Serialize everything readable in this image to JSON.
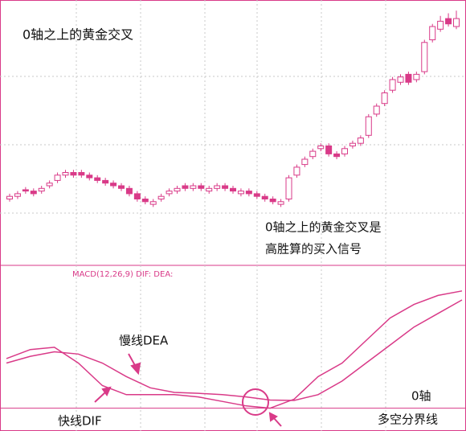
{
  "chart_data": [
    {
      "type": "candlestick",
      "title": "0轴之上的黄金交叉",
      "annotations": [
        "0轴之上的黄金交叉是",
        "高胜算的买入信号"
      ],
      "color": "#d93a88",
      "grid": true,
      "ylim": [
        0,
        100
      ],
      "open": [
        25,
        26,
        28.5,
        28,
        28,
        30,
        32,
        34,
        35,
        35,
        34,
        33,
        32,
        31,
        30,
        29,
        27,
        25,
        23,
        25,
        27,
        28,
        30,
        29,
        30,
        28,
        29,
        30,
        29,
        27,
        28,
        27,
        26,
        25,
        23,
        25,
        34,
        38,
        41,
        44,
        45,
        42,
        42,
        45,
        46,
        49,
        57,
        61,
        66,
        69,
        72,
        70,
        73,
        85,
        89,
        93,
        90
      ],
      "high": [
        27,
        28,
        29.5,
        29,
        30,
        32,
        35,
        36,
        36,
        36,
        35,
        34,
        33,
        32,
        31,
        30,
        28,
        26,
        25,
        27,
        29,
        30,
        31,
        31,
        31,
        30,
        31,
        31,
        30,
        29,
        29,
        28,
        27,
        26,
        25,
        34,
        38,
        41,
        44,
        46,
        46,
        43,
        45,
        47,
        49,
        57,
        61,
        66,
        71,
        72,
        73,
        73,
        85,
        91,
        94,
        95,
        96
      ],
      "low": [
        24,
        25,
        27,
        26,
        27,
        29,
        31,
        33,
        33,
        33,
        32,
        31,
        30,
        29,
        28,
        26,
        24,
        23,
        22,
        24,
        26,
        27,
        28,
        28,
        28,
        27,
        28,
        28,
        27,
        26,
        26,
        25,
        24,
        23,
        22,
        24,
        33,
        37,
        40,
        43,
        41,
        40,
        41,
        44,
        45,
        48,
        56,
        60,
        65,
        68,
        68,
        69,
        72,
        84,
        88,
        90,
        89
      ],
      "close": [
        26,
        27,
        28,
        27,
        29,
        31,
        34,
        35,
        34,
        34,
        33,
        32,
        31,
        30,
        29,
        27,
        25,
        24,
        24,
        26,
        28,
        29,
        29,
        30,
        29,
        29,
        30,
        29,
        28,
        28,
        27,
        26,
        25,
        24,
        24,
        33,
        37,
        40,
        43,
        45,
        42,
        41,
        44,
        46,
        48,
        56,
        60,
        65,
        70,
        71,
        69,
        72,
        84,
        90,
        92,
        91,
        93
      ]
    },
    {
      "type": "line",
      "title": "MACD(12,26,9) DIF: DEA:",
      "ylim": [
        -0.4,
        2.9
      ],
      "zero_line": 0,
      "annotations": [
        "0轴",
        "多空分界线"
      ],
      "series": [
        {
          "name": "快线DIF",
          "color": "#d93a88",
          "values": [
            1.1,
            1.3,
            1.35,
            1.0,
            0.5,
            0.3,
            0.3,
            0.3,
            0.25,
            0.15,
            0.05,
            0.0,
            0.2,
            0.7,
            1.0,
            1.5,
            2.0,
            2.3,
            2.5,
            2.6
          ]
        },
        {
          "name": "慢线DEA",
          "color": "#d93a88",
          "values": [
            1.0,
            1.15,
            1.25,
            1.2,
            1.0,
            0.7,
            0.45,
            0.35,
            0.33,
            0.3,
            0.25,
            0.18,
            0.17,
            0.3,
            0.6,
            1.0,
            1.4,
            1.8,
            2.1,
            2.4
          ]
        }
      ]
    }
  ]
}
